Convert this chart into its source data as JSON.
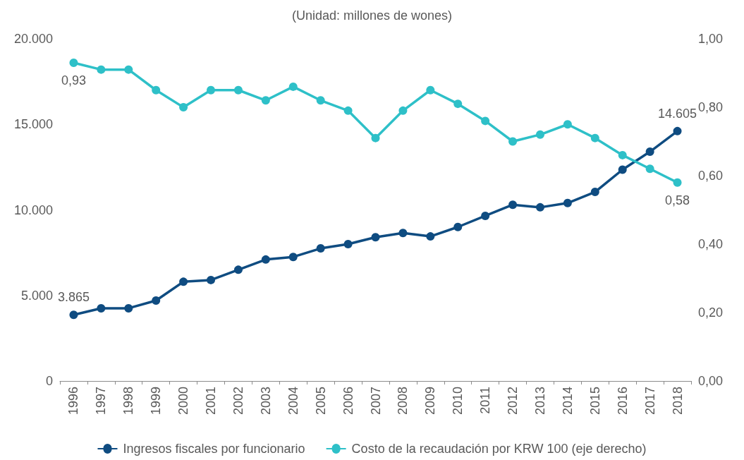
{
  "chart_data": {
    "type": "line",
    "subtitle": "(Unidad: millones de wones)",
    "categories": [
      "1996",
      "1997",
      "1998",
      "1999",
      "2000",
      "2001",
      "2002",
      "2003",
      "2004",
      "2005",
      "2006",
      "2007",
      "2008",
      "2009",
      "2010",
      "2011",
      "2012",
      "2013",
      "2014",
      "2015",
      "2016",
      "2017",
      "2018"
    ],
    "series": [
      {
        "name": "Ingresos fiscales por funcionario",
        "color": "#0f4c81",
        "values": [
          3865,
          4250,
          4250,
          4700,
          5800,
          5900,
          6500,
          7100,
          7250,
          7750,
          8000,
          8400,
          8650,
          8450,
          9000,
          9650,
          10300,
          10150,
          10400,
          11050,
          12350,
          13400,
          14605
        ],
        "value_labels": [
          "3.865",
          null,
          null,
          null,
          null,
          null,
          null,
          null,
          null,
          null,
          null,
          null,
          null,
          null,
          null,
          null,
          null,
          null,
          null,
          null,
          null,
          null,
          "14.605"
        ]
      },
      {
        "name": "Costo de la recaudación por KRW 100 (eje derecho)",
        "color": "#2ec0c8",
        "axis": "y2",
        "values": [
          0.93,
          0.91,
          0.91,
          0.85,
          0.8,
          0.85,
          0.85,
          0.82,
          0.86,
          0.82,
          0.79,
          0.71,
          0.79,
          0.85,
          0.81,
          0.76,
          0.7,
          0.72,
          0.75,
          0.71,
          0.66,
          0.62,
          0.58
        ],
        "value_labels": [
          "0,93",
          null,
          null,
          null,
          null,
          null,
          null,
          null,
          null,
          null,
          null,
          null,
          null,
          null,
          null,
          null,
          null,
          null,
          null,
          null,
          null,
          null,
          "0,58"
        ]
      }
    ],
    "ylim": [
      0,
      20000
    ],
    "yticks": [
      0,
      {
        "value": 5000,
        "label": "5.000"
      },
      {
        "value": 10000,
        "label": "10.000"
      },
      {
        "value": 15000,
        "label": "15.000"
      },
      {
        "value": 20000,
        "label": "20.000"
      }
    ],
    "y2lim": [
      0,
      1
    ],
    "y2ticks": [
      {
        "value": 0,
        "label": "0,00"
      },
      {
        "value": 0.2,
        "label": "0,20"
      },
      {
        "value": 0.4,
        "label": "0,40"
      },
      {
        "value": 0.6,
        "label": "0,60"
      },
      {
        "value": 0.8,
        "label": "0,80"
      },
      {
        "value": 1,
        "label": "1,00"
      }
    ],
    "grid": false,
    "legend": "bottom",
    "marker": "circle",
    "line_style": "solid"
  }
}
